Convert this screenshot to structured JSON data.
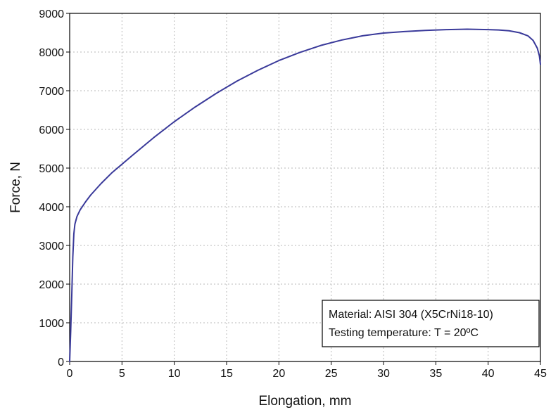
{
  "chart_data": {
    "type": "line",
    "xlabel": "Elongation, mm",
    "ylabel": "Force, N",
    "xlim": [
      0,
      45
    ],
    "ylim": [
      0,
      9000
    ],
    "xticks": [
      0,
      5,
      10,
      15,
      20,
      25,
      30,
      35,
      40,
      45
    ],
    "yticks": [
      0,
      1000,
      2000,
      3000,
      4000,
      5000,
      6000,
      7000,
      8000,
      9000
    ],
    "grid": true,
    "legend_placement": "bottom-right",
    "annotation": {
      "lines": [
        "Material: AISI 304 (X5CrNi18-10)",
        "Testing temperature: T = 20ºC"
      ]
    },
    "series": [
      {
        "color": "#3a3a9a",
        "x": [
          0,
          0.1,
          0.2,
          0.3,
          0.4,
          0.5,
          0.7,
          1,
          1.5,
          2,
          3,
          4,
          5,
          6,
          8,
          10,
          12,
          14,
          16,
          18,
          20,
          22,
          24,
          26,
          28,
          30,
          32,
          34,
          36,
          38,
          40,
          41,
          42,
          43,
          43.8,
          44.3,
          44.7,
          44.9,
          45
        ],
        "y": [
          0,
          800,
          1700,
          2700,
          3300,
          3550,
          3750,
          3920,
          4120,
          4300,
          4600,
          4870,
          5100,
          5330,
          5780,
          6200,
          6580,
          6930,
          7250,
          7530,
          7780,
          7990,
          8170,
          8310,
          8420,
          8490,
          8530,
          8560,
          8580,
          8590,
          8580,
          8570,
          8550,
          8500,
          8420,
          8300,
          8100,
          7900,
          7680
        ]
      }
    ]
  }
}
